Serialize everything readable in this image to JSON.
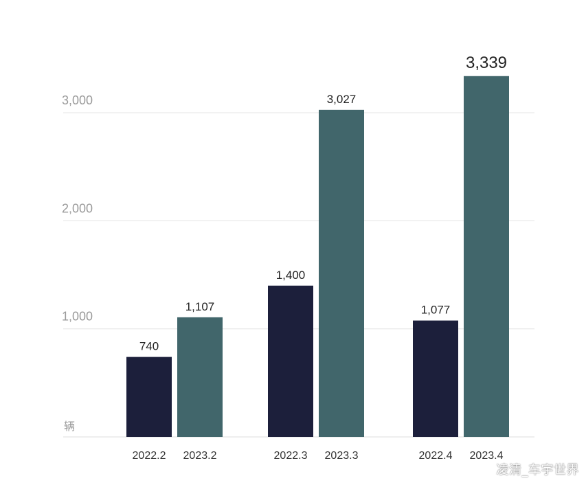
{
  "chart_data": {
    "type": "bar",
    "unit_label": "辆",
    "yticks": [
      "1,000",
      "2,000",
      "3,000"
    ],
    "ytick_values": [
      1000,
      2000,
      3000
    ],
    "ylim": [
      0,
      3700
    ],
    "grid": true,
    "groups": [
      {
        "bars": [
          {
            "category": "2022.2",
            "value": 740,
            "label": "740",
            "color": "#1c1f3b"
          },
          {
            "category": "2023.2",
            "value": 1107,
            "label": "1,107",
            "color": "#41666b"
          }
        ]
      },
      {
        "bars": [
          {
            "category": "2022.3",
            "value": 1400,
            "label": "1,400",
            "color": "#1c1f3b"
          },
          {
            "category": "2023.3",
            "value": 3027,
            "label": "3,027",
            "color": "#41666b"
          }
        ]
      },
      {
        "bars": [
          {
            "category": "2022.4",
            "value": 1077,
            "label": "1,077",
            "color": "#1c1f3b"
          },
          {
            "category": "2023.4",
            "value": 3339,
            "label": "3,339",
            "color": "#41666b"
          }
        ]
      }
    ]
  },
  "watermark": {
    "text": "凌清_车宇世界",
    "icon": "weibo-icon"
  }
}
